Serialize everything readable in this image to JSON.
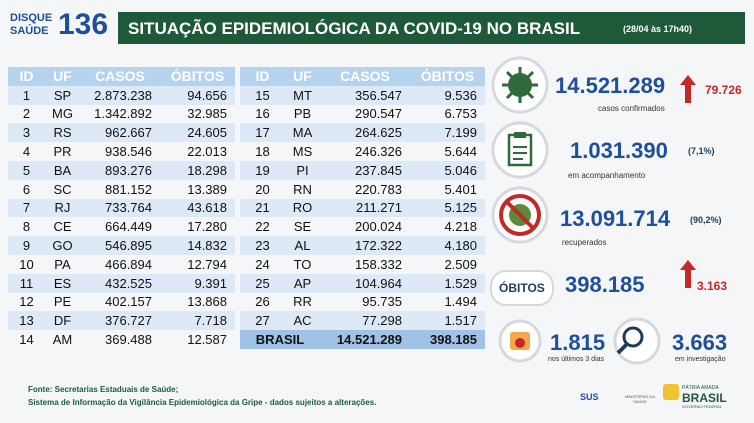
{
  "header": {
    "logo": {
      "line1": "DISQUE",
      "line2": "SAÚDE",
      "number": "136"
    },
    "title": "SITUAÇÃO EPIDEMIOLÓGICA DA COVID-19 NO BRASIL",
    "date": "(28/04 às 17h40)"
  },
  "tables": [
    {
      "columns": [
        "ID",
        "UF",
        "CASOS",
        "ÓBITOS"
      ],
      "rows": [
        [
          "1",
          "SP",
          "2.873.238",
          "94.656"
        ],
        [
          "2",
          "MG",
          "1.342.892",
          "32.985"
        ],
        [
          "3",
          "RS",
          "962.667",
          "24.605"
        ],
        [
          "4",
          "PR",
          "938.546",
          "22.013"
        ],
        [
          "5",
          "BA",
          "893.276",
          "18.298"
        ],
        [
          "6",
          "SC",
          "881.152",
          "13.389"
        ],
        [
          "7",
          "RJ",
          "733.764",
          "43.618"
        ],
        [
          "8",
          "CE",
          "664.449",
          "17.280"
        ],
        [
          "9",
          "GO",
          "546.895",
          "14.832"
        ],
        [
          "10",
          "PA",
          "466.894",
          "12.794"
        ],
        [
          "11",
          "ES",
          "432.525",
          "9.391"
        ],
        [
          "12",
          "PE",
          "402.157",
          "13.868"
        ],
        [
          "13",
          "DF",
          "376.727",
          "7.718"
        ],
        [
          "14",
          "AM",
          "369.488",
          "12.587"
        ]
      ]
    },
    {
      "columns": [
        "ID",
        "UF",
        "CASOS",
        "ÓBITOS"
      ],
      "rows": [
        [
          "15",
          "MT",
          "356.547",
          "9.536"
        ],
        [
          "16",
          "PB",
          "290.547",
          "6.753"
        ],
        [
          "17",
          "MA",
          "264.625",
          "7.199"
        ],
        [
          "18",
          "MS",
          "246.326",
          "5.644"
        ],
        [
          "19",
          "PI",
          "237.845",
          "5.046"
        ],
        [
          "20",
          "RN",
          "220.783",
          "5.401"
        ],
        [
          "21",
          "RO",
          "211.271",
          "5.125"
        ],
        [
          "22",
          "SE",
          "200.024",
          "4.218"
        ],
        [
          "23",
          "AL",
          "172.322",
          "4.180"
        ],
        [
          "24",
          "TO",
          "158.332",
          "2.509"
        ],
        [
          "25",
          "AP",
          "104.964",
          "1.529"
        ],
        [
          "26",
          "RR",
          "95.735",
          "1.494"
        ],
        [
          "27",
          "AC",
          "77.298",
          "1.517"
        ]
      ],
      "total": [
        "BRASIL",
        "14.521.289",
        "398.185"
      ]
    }
  ],
  "stats": {
    "confirmed": {
      "value": "14.521.289",
      "change": "79.726",
      "caption": "casos confirmados"
    },
    "monitoring": {
      "value": "1.031.390",
      "percent": "(7,1%)",
      "caption": "em acompanhamento"
    },
    "recovered": {
      "value": "13.091.714",
      "percent": "(90,2%)",
      "caption": "recuperados"
    },
    "deaths": {
      "label": "ÓBITOS",
      "value": "398.185",
      "change": "3.163"
    },
    "last_days": {
      "value": "1.815",
      "caption": "nos últimos 3 dias"
    },
    "investigation": {
      "value": "3.663",
      "caption": "em investigação"
    }
  },
  "footer": {
    "line1": "Fonte: Secretarias Estaduais de Saúde;",
    "line2": "Sistema de Informação da Vigilância Epidemiológica da Gripe - dados sujeitos a alterações.",
    "sus": "SUS",
    "ministry": "MINISTÉRIO DA SAÚDE",
    "gov": {
      "line1": "PÁTRIA AMADA",
      "line2": "BRASIL",
      "line3": "GOVERNO FEDERAL"
    }
  }
}
